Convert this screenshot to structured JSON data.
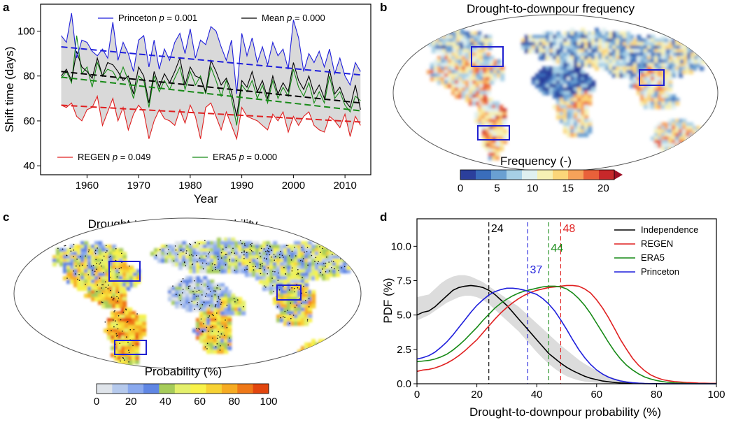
{
  "panels": {
    "a": {
      "label": "a"
    },
    "b": {
      "label": "b"
    },
    "c": {
      "label": "c"
    },
    "d": {
      "label": "d"
    }
  },
  "chart_data": [
    {
      "id": "a",
      "type": "line",
      "xlabel": "Year",
      "ylabel": "Shift time (days)",
      "xlim": [
        1951,
        2015
      ],
      "ylim": [
        36,
        112
      ],
      "xticks": [
        1960,
        1970,
        1980,
        1990,
        2000,
        2010
      ],
      "yticks": [
        40,
        60,
        80,
        100
      ],
      "x": [
        1955,
        1956,
        1957,
        1958,
        1959,
        1960,
        1961,
        1962,
        1963,
        1964,
        1965,
        1966,
        1967,
        1968,
        1969,
        1970,
        1971,
        1972,
        1973,
        1974,
        1975,
        1976,
        1977,
        1978,
        1979,
        1980,
        1981,
        1982,
        1983,
        1984,
        1985,
        1986,
        1987,
        1988,
        1989,
        1990,
        1991,
        1992,
        1993,
        1994,
        1995,
        1996,
        1997,
        1998,
        1999,
        2000,
        2001,
        2002,
        2003,
        2004,
        2005,
        2006,
        2007,
        2008,
        2009,
        2010,
        2011,
        2012,
        2013
      ],
      "shaded_band": "range between REGEN and Princeton",
      "series": [
        {
          "name": "Princeton",
          "p_label": "p = 0.001",
          "color": "#1f1fdc",
          "values": [
            98,
            95,
            108,
            88,
            96,
            95,
            91,
            89,
            92,
            88,
            104,
            87,
            95,
            90,
            82,
            96,
            98,
            84,
            96,
            83,
            92,
            87,
            95,
            99,
            90,
            101,
            88,
            96,
            94,
            102,
            100,
            93,
            87,
            96,
            72,
            99,
            89,
            97,
            86,
            93,
            85,
            95,
            89,
            92,
            83,
            105,
            97,
            82,
            90,
            86,
            91,
            84,
            92,
            81,
            88,
            80,
            76,
            86,
            82
          ]
        },
        {
          "name": "Mean",
          "p_label": "p = 0.000",
          "color": "#000000",
          "values": [
            80,
            83,
            78,
            91,
            84,
            82,
            79,
            88,
            80,
            86,
            85,
            82,
            78,
            80,
            72,
            84,
            80,
            68,
            82,
            75,
            81,
            77,
            82,
            88,
            76,
            84,
            80,
            79,
            73,
            87,
            82,
            76,
            79,
            73,
            62,
            78,
            75,
            82,
            73,
            78,
            70,
            80,
            72,
            77,
            73,
            86,
            78,
            74,
            80,
            72,
            76,
            70,
            83,
            72,
            75,
            69,
            66,
            76,
            65
          ]
        },
        {
          "name": "REGEN",
          "p_label": "p = 0.049",
          "color": "#e02020",
          "values": [
            67,
            66,
            68,
            62,
            60,
            65,
            66,
            71,
            58,
            64,
            70,
            60,
            66,
            56,
            63,
            67,
            64,
            52,
            60,
            65,
            61,
            60,
            58,
            65,
            59,
            67,
            62,
            52,
            66,
            68,
            62,
            56,
            64,
            58,
            52,
            66,
            62,
            61,
            60,
            58,
            56,
            63,
            60,
            64,
            55,
            62,
            58,
            62,
            64,
            58,
            56,
            55,
            62,
            60,
            57,
            63,
            53,
            62,
            58
          ]
        },
        {
          "name": "ERA5",
          "p_label": "p = 0.000",
          "color": "#178a17",
          "values": [
            79,
            82,
            77,
            98,
            81,
            84,
            75,
            86,
            80,
            83,
            82,
            78,
            84,
            78,
            70,
            80,
            78,
            66,
            80,
            73,
            78,
            74,
            79,
            84,
            74,
            82,
            76,
            80,
            72,
            84,
            78,
            71,
            78,
            70,
            58,
            76,
            73,
            78,
            70,
            76,
            68,
            78,
            70,
            75,
            71,
            83,
            75,
            71,
            77,
            68,
            73,
            68,
            80,
            70,
            73,
            67,
            64,
            71,
            69
          ]
        }
      ],
      "trends": [
        {
          "name": "Princeton",
          "start": 93,
          "end": 80.5
        },
        {
          "name": "Mean",
          "start": 82,
          "end": 68
        },
        {
          "name": "REGEN",
          "start": 67,
          "end": 59.5
        },
        {
          "name": "ERA5",
          "start": 79.5,
          "end": 64.5
        }
      ]
    },
    {
      "id": "b",
      "type": "heatmap",
      "title": "Drought-to-downpour frequency",
      "colorbar_label": "Frequency (-)",
      "colorbar_ticks": [
        "0",
        "5",
        "10",
        "15",
        "20"
      ],
      "colorbar_colors": [
        "#2b3f9c",
        "#3a6dbb",
        "#6aa0d2",
        "#a6cfe6",
        "#dff0f0",
        "#f6f0b4",
        "#fbd679",
        "#f6a25a",
        "#e9613a",
        "#c8282a",
        "#9e0f25"
      ]
    },
    {
      "id": "c",
      "type": "heatmap",
      "title": "Drought-to-downpour probability",
      "colorbar_label": "Probability (%)",
      "colorbar_ticks": [
        "0",
        "20",
        "40",
        "60",
        "80",
        "100"
      ],
      "colorbar_colors": [
        "#dfe4ea",
        "#b5c9ec",
        "#8aa9ee",
        "#5f86e4",
        "#a6cc5a",
        "#e4f06c",
        "#f8f24a",
        "#f7d234",
        "#f6ab22",
        "#ef7818",
        "#e2450e"
      ]
    },
    {
      "id": "d",
      "type": "line",
      "xlabel": "Drought-to-downpour probability (%)",
      "ylabel": "PDF (%)",
      "xlim": [
        0,
        100
      ],
      "ylim": [
        0,
        12
      ],
      "xticks": [
        0,
        20,
        40,
        60,
        80,
        100
      ],
      "yticks": [
        0.0,
        2.5,
        5.0,
        7.5,
        10.0
      ],
      "x": [
        0,
        2,
        4,
        6,
        8,
        10,
        12,
        14,
        16,
        18,
        20,
        22,
        24,
        26,
        28,
        30,
        32,
        34,
        36,
        38,
        40,
        42,
        44,
        46,
        48,
        50,
        52,
        54,
        56,
        58,
        60,
        62,
        64,
        66,
        68,
        70,
        72,
        74,
        76,
        78,
        80,
        82,
        84,
        86,
        88,
        90,
        92,
        94,
        96,
        98,
        100
      ],
      "series": [
        {
          "name": "Independence",
          "color": "#000000",
          "marker_value": 24,
          "values": [
            5.0,
            5.2,
            5.3,
            5.6,
            6.0,
            6.4,
            6.8,
            7.0,
            7.1,
            7.15,
            7.1,
            7.0,
            6.8,
            6.5,
            6.1,
            5.7,
            5.2,
            4.7,
            4.2,
            3.7,
            3.2,
            2.7,
            2.2,
            1.85,
            1.5,
            1.2,
            0.95,
            0.75,
            0.55,
            0.4,
            0.3,
            0.2,
            0.14,
            0.09,
            0.06,
            0.04,
            0.03,
            0.02,
            0.01,
            0.01,
            0.01,
            0.0,
            0.0,
            0.0,
            0.0,
            0.0,
            0.0,
            0.0,
            0.0,
            0.0,
            0.0
          ]
        },
        {
          "name": "REGEN",
          "color": "#e02020",
          "marker_value": 48,
          "values": [
            0.9,
            1.0,
            1.05,
            1.15,
            1.3,
            1.5,
            1.75,
            2.05,
            2.4,
            2.8,
            3.2,
            3.7,
            4.2,
            4.7,
            5.15,
            5.55,
            5.9,
            6.2,
            6.45,
            6.65,
            6.8,
            6.9,
            7.0,
            7.05,
            7.1,
            7.15,
            7.15,
            7.1,
            6.9,
            6.6,
            6.1,
            5.5,
            4.8,
            4.0,
            3.2,
            2.5,
            1.85,
            1.35,
            0.95,
            0.65,
            0.45,
            0.3,
            0.22,
            0.16,
            0.12,
            0.09,
            0.07,
            0.05,
            0.04,
            0.03,
            0.03
          ]
        },
        {
          "name": "ERA5",
          "color": "#178a17",
          "marker_value": 44,
          "values": [
            1.6,
            1.65,
            1.7,
            1.8,
            1.95,
            2.15,
            2.45,
            2.8,
            3.2,
            3.65,
            4.1,
            4.6,
            5.05,
            5.5,
            5.85,
            6.15,
            6.4,
            6.6,
            6.75,
            6.85,
            6.95,
            7.05,
            7.1,
            7.1,
            7.05,
            6.9,
            6.6,
            6.2,
            5.7,
            5.1,
            4.4,
            3.7,
            3.0,
            2.35,
            1.8,
            1.35,
            1.0,
            0.72,
            0.5,
            0.35,
            0.24,
            0.16,
            0.1,
            0.06,
            0.04,
            0.02,
            0.01,
            0.0,
            0.0,
            0.0,
            0.0
          ]
        },
        {
          "name": "Princeton",
          "color": "#1f1fdc",
          "marker_value": 37,
          "values": [
            1.8,
            1.9,
            2.05,
            2.3,
            2.65,
            3.05,
            3.55,
            4.1,
            4.65,
            5.2,
            5.7,
            6.1,
            6.45,
            6.7,
            6.85,
            6.95,
            6.95,
            6.9,
            6.8,
            6.65,
            6.5,
            6.2,
            5.8,
            5.3,
            4.65,
            3.95,
            3.2,
            2.5,
            1.9,
            1.4,
            1.0,
            0.7,
            0.48,
            0.32,
            0.2,
            0.12,
            0.07,
            0.04,
            0.02,
            0.01,
            0.0,
            0.0,
            0.0,
            0.0,
            0.0,
            0.0,
            0.0,
            0.0,
            0.0,
            0.0,
            0.0
          ]
        }
      ],
      "band": {
        "label": "Independence range",
        "upper": [
          6.3,
          6.4,
          6.5,
          6.9,
          7.3,
          7.6,
          7.8,
          7.9,
          7.9,
          7.8,
          7.6,
          7.4,
          7.1,
          6.8,
          6.5,
          6.2,
          5.9,
          5.6,
          5.2,
          4.8,
          4.4,
          4.0,
          3.6,
          3.2,
          2.8,
          2.45,
          2.1,
          1.75,
          1.45,
          1.2,
          0.95,
          0.75,
          0.55,
          0.4,
          0.28,
          0.2,
          0.14,
          0.1,
          0.07,
          0.05,
          0.03,
          0.02,
          0.01,
          0.0,
          0.0,
          0.0,
          0.0,
          0.0,
          0.0,
          0.0,
          0.0
        ],
        "lower": [
          4.6,
          4.8,
          5.0,
          5.3,
          5.6,
          5.9,
          6.1,
          6.3,
          6.4,
          6.4,
          6.3,
          6.1,
          5.8,
          5.4,
          5.0,
          4.6,
          4.2,
          3.8,
          3.3,
          2.8,
          2.3,
          1.85,
          1.45,
          1.1,
          0.8,
          0.55,
          0.38,
          0.25,
          0.16,
          0.1,
          0.06,
          0.04,
          0.02,
          0.01,
          0.0,
          0.0,
          0.0,
          0.0,
          0.0,
          0.0,
          0.0,
          0.0,
          0.0,
          0.0,
          0.0,
          0.0,
          0.0,
          0.0,
          0.0,
          0.0,
          0.0
        ]
      }
    }
  ]
}
